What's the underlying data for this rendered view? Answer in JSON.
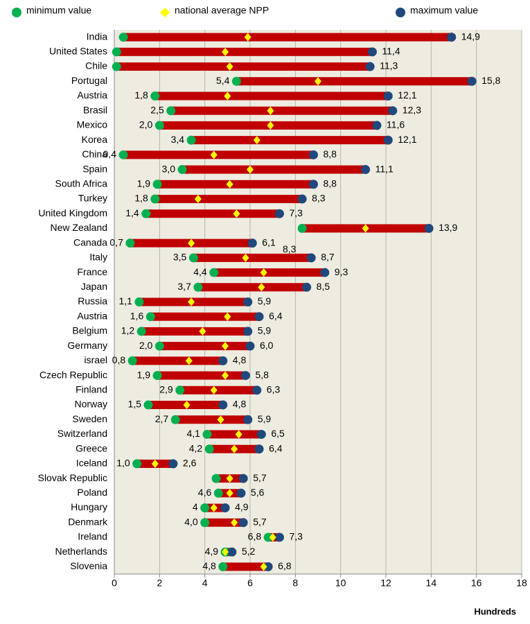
{
  "chart_data": {
    "type": "dumbbell",
    "x_label": "Hundreds",
    "annotations": [
      "8,3"
    ],
    "categories": [
      "India",
      "United States",
      "Chile",
      "Portugal",
      "Austria",
      "Brasil",
      "Mexico",
      "Korea",
      "China",
      "Spain",
      "South Africa",
      "Turkey",
      "United Kingdom",
      "New Zealand",
      "Canada",
      "Italy",
      "France",
      "Japan",
      "Russia",
      "Austria",
      "Belgium",
      "Germany",
      "israel",
      "Czech Republic",
      "Finland",
      "Norway",
      "Sweden",
      "Switzerland",
      "Greece",
      "Iceland",
      "Slovak Republic",
      "Poland",
      "Hungary",
      "Denmark",
      "Ireland",
      "Netherlands",
      "Slovenia"
    ],
    "bar_color": "#c00000",
    "series": [
      {
        "name": "minimum value",
        "color": "#00b050",
        "values": [
          0.4,
          0.1,
          0.1,
          5.4,
          1.8,
          2.5,
          2.0,
          3.4,
          0.4,
          3.0,
          1.9,
          1.8,
          1.4,
          8.3,
          0.7,
          3.5,
          4.4,
          3.7,
          1.1,
          1.6,
          1.2,
          2.0,
          0.8,
          1.9,
          2.9,
          1.5,
          2.7,
          4.1,
          4.2,
          1.0,
          4.5,
          4.6,
          4,
          4.0,
          6.8,
          4.9,
          4.8
        ],
        "value_labels": [
          null,
          null,
          null,
          "5,4",
          "1,8",
          "2,5",
          "2,0",
          "3,4",
          "0,4",
          "3,0",
          "1,9",
          "1,8",
          "1,4",
          null,
          "0,7",
          "3,5",
          "4,4",
          "3,7",
          "1,1",
          "1,6",
          "1,2",
          "2,0",
          "0,8",
          "1,9",
          "2,9",
          "1,5",
          "2,7",
          "4,1",
          "4,2",
          "1,0",
          null,
          "4,6",
          "4",
          "4,0",
          "6,8",
          "4,9",
          "4,8"
        ]
      },
      {
        "name": "national average NPP",
        "color": "#ffff00",
        "values": [
          5.9,
          4.9,
          5.1,
          9.0,
          5.0,
          6.9,
          6.9,
          6.3,
          4.4,
          6.0,
          5.1,
          3.7,
          5.4,
          11.1,
          3.4,
          5.8,
          6.6,
          6.5,
          3.4,
          5.0,
          3.9,
          4.9,
          3.3,
          4.9,
          4.4,
          3.2,
          4.7,
          5.5,
          5.3,
          1.8,
          5.1,
          5.1,
          4.4,
          5.3,
          7.0,
          4.9,
          6.6
        ]
      },
      {
        "name": "maximum value",
        "color": "#1f497d",
        "values": [
          14.9,
          11.4,
          11.3,
          15.8,
          12.1,
          12.3,
          11.6,
          12.1,
          8.8,
          11.1,
          8.8,
          8.3,
          7.3,
          13.9,
          6.1,
          8.7,
          9.3,
          8.5,
          5.9,
          6.4,
          5.9,
          6.0,
          4.8,
          5.8,
          6.3,
          4.8,
          5.9,
          6.5,
          6.4,
          2.6,
          5.7,
          5.6,
          4.9,
          5.7,
          7.3,
          5.2,
          6.8
        ],
        "value_labels": [
          "14,9",
          "11,4",
          "11,3",
          "15,8",
          "12,1",
          "12,3",
          "11,6",
          "12,1",
          "8,8",
          "11,1",
          "8,8",
          "8,3",
          "7,3",
          "13,9",
          "6,1",
          "8,7",
          "9,3",
          "8,5",
          "5,9",
          "6,4",
          "5,9",
          "6,0",
          "4,8",
          "5,8",
          "6,3",
          "4,8",
          "5,9",
          "6,5",
          "6,4",
          "2,6",
          "5,7",
          "5,6",
          "4,9",
          "5,7",
          "7,3",
          "5,2",
          "6,8"
        ]
      }
    ],
    "xlim": [
      0,
      18
    ],
    "xticks": [
      0,
      2,
      4,
      6,
      8,
      10,
      12,
      14,
      16,
      18
    ],
    "grid": true,
    "background": "#eeece1"
  }
}
